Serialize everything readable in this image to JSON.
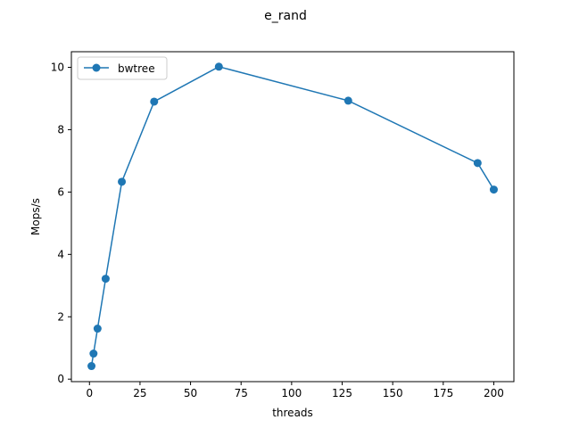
{
  "chart_data": {
    "type": "line",
    "title": "e_rand",
    "xlabel": "threads",
    "ylabel": "Mops/s",
    "xlim": [
      -8.95,
      209.95
    ],
    "ylim": [
      -0.08,
      10.5
    ],
    "xticks": [
      0,
      25,
      50,
      75,
      100,
      125,
      150,
      175,
      200
    ],
    "yticks": [
      0,
      2,
      4,
      6,
      8,
      10
    ],
    "grid": false,
    "legend_position": "upper left",
    "series": [
      {
        "name": "bwtree",
        "color": "#1f77b4",
        "marker": "circle",
        "x": [
          1,
          2,
          4,
          8,
          16,
          32,
          64,
          128,
          192,
          200
        ],
        "y": [
          0.42,
          0.82,
          1.62,
          3.22,
          6.33,
          8.9,
          10.02,
          8.93,
          6.93,
          6.08
        ]
      }
    ]
  }
}
